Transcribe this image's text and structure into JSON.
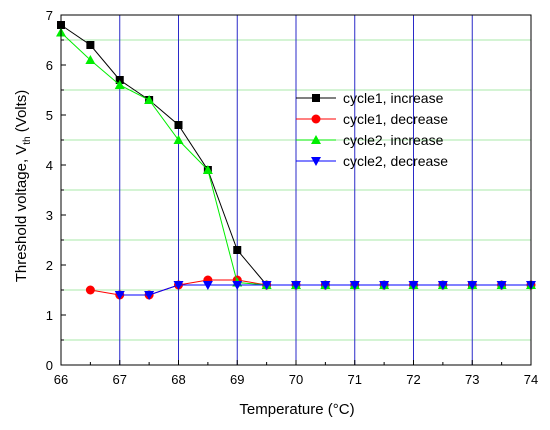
{
  "chart_data": {
    "type": "line",
    "xlabel": "Temperature (°C)",
    "ylabel": "Threshold voltage, V",
    "ylabel_sub": "th",
    "ylabel_unit": " (Volts)",
    "xlim": [
      66,
      74
    ],
    "ylim": [
      0,
      7
    ],
    "xticks": [
      "66",
      "67",
      "68",
      "69",
      "70",
      "71",
      "72",
      "73",
      "74"
    ],
    "yticks": [
      "0",
      "1",
      "2",
      "3",
      "4",
      "5",
      "6",
      "7"
    ],
    "x_gridlines": [
      67,
      68,
      69,
      70,
      71,
      72,
      73
    ],
    "y_gridlines": [
      0.5,
      1.5,
      2.5,
      3.5,
      4.5,
      5.5,
      6.5
    ],
    "legend_position": "upper-right",
    "series": [
      {
        "name": "cycle1, increase",
        "color": "#000000",
        "marker": "square",
        "x": [
          66,
          66.5,
          67,
          67.5,
          68,
          68.5,
          69,
          69.5,
          70,
          70.5,
          71,
          71.5,
          72,
          72.5,
          73,
          73.5,
          74
        ],
        "y": [
          6.8,
          6.4,
          5.7,
          5.3,
          4.8,
          3.9,
          2.3,
          1.6,
          1.6,
          1.6,
          1.6,
          1.6,
          1.6,
          1.6,
          1.6,
          1.6,
          1.6
        ]
      },
      {
        "name": "cycle1, decrease",
        "color": "#ff0000",
        "marker": "circle",
        "x": [
          66.5,
          67,
          67.5,
          68,
          68.5,
          69,
          69.5,
          70,
          70.5,
          71,
          71.5,
          72,
          72.5,
          73,
          73.5,
          74
        ],
        "y": [
          1.5,
          1.4,
          1.4,
          1.6,
          1.7,
          1.7,
          1.6,
          1.6,
          1.6,
          1.6,
          1.6,
          1.6,
          1.6,
          1.6,
          1.6,
          1.6
        ]
      },
      {
        "name": "cycle2, increase",
        "color": "#00ee00",
        "marker": "triangle-up",
        "x": [
          66,
          66.5,
          67,
          67.5,
          68,
          68.5,
          69,
          69.5,
          70,
          70.5,
          71,
          71.5,
          72,
          72.5,
          73,
          73.5,
          74
        ],
        "y": [
          6.65,
          6.1,
          5.6,
          5.3,
          4.5,
          3.9,
          1.65,
          1.6,
          1.6,
          1.6,
          1.6,
          1.6,
          1.6,
          1.6,
          1.6,
          1.6,
          1.6
        ]
      },
      {
        "name": "cycle2, decrease",
        "color": "#0000ff",
        "marker": "triangle-down",
        "x": [
          67,
          67.5,
          68,
          68.5,
          69,
          69.5,
          70,
          70.5,
          71,
          71.5,
          72,
          72.5,
          73,
          73.5,
          74
        ],
        "y": [
          1.4,
          1.4,
          1.6,
          1.6,
          1.6,
          1.6,
          1.6,
          1.6,
          1.6,
          1.6,
          1.6,
          1.6,
          1.6,
          1.6,
          1.6
        ]
      }
    ]
  }
}
